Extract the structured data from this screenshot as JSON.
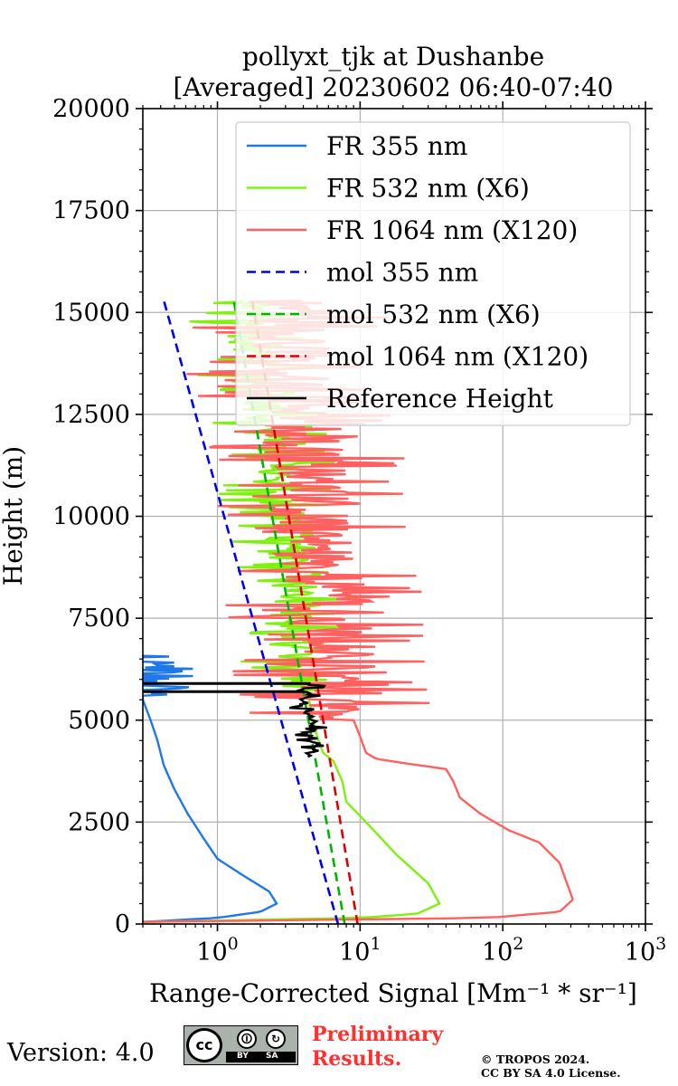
{
  "chart_data": {
    "type": "line",
    "title_line1": "pollyxt_tjk at Dushanbe",
    "title_line2": "[Averaged] 20230602 06:40-07:40",
    "xlabel": "Range-Corrected Signal [Mm⁻¹ * sr⁻¹]",
    "ylabel": "Height (m)",
    "xscale": "log",
    "xlim": [
      0.3,
      1000
    ],
    "ylim": [
      0,
      20000
    ],
    "grid": true,
    "legend_position": "upper right",
    "y_ticks": [
      0,
      2500,
      5000,
      7500,
      10000,
      12500,
      15000,
      17500,
      20000
    ],
    "y_tick_labels": [
      "0",
      "2500",
      "5000",
      "7500",
      "10000",
      "12500",
      "15000",
      "17500",
      "20000"
    ],
    "x_ticks": [
      1,
      10,
      100,
      1000
    ],
    "x_tick_labels": [
      {
        "base": "10",
        "exp": "0"
      },
      {
        "base": "10",
        "exp": "1"
      },
      {
        "base": "10",
        "exp": "2"
      },
      {
        "base": "10",
        "exp": "3"
      }
    ],
    "series": [
      {
        "name": "FR 355 nm",
        "color": "#1f78e8",
        "style": "solid",
        "noise": 0.55,
        "noise_start": 5600,
        "points": [
          [
            0.3,
            50
          ],
          [
            1.0,
            150
          ],
          [
            2.0,
            300
          ],
          [
            2.6,
            500
          ],
          [
            2.3,
            800
          ],
          [
            1.5,
            1200
          ],
          [
            1.0,
            1600
          ],
          [
            0.8,
            2100
          ],
          [
            0.62,
            2700
          ],
          [
            0.5,
            3300
          ],
          [
            0.42,
            3900
          ],
          [
            0.38,
            4500
          ],
          [
            0.34,
            5000
          ],
          [
            0.3,
            5500
          ],
          [
            0.3,
            6100
          ],
          [
            0.3,
            6600
          ]
        ]
      },
      {
        "name": "FR 532 nm (X6)",
        "color": "#80f010",
        "style": "solid",
        "noise": 0.45,
        "noise_start": 5700,
        "points": [
          [
            0.3,
            50
          ],
          [
            10,
            150
          ],
          [
            25,
            250
          ],
          [
            36,
            500
          ],
          [
            30,
            1000
          ],
          [
            18,
            1700
          ],
          [
            11,
            2500
          ],
          [
            8,
            3000
          ],
          [
            7.5,
            3500
          ],
          [
            6.5,
            4000
          ],
          [
            5.5,
            4200
          ],
          [
            5.0,
            4600
          ],
          [
            4.6,
            5100
          ],
          [
            4.3,
            5700
          ],
          [
            4.0,
            6500
          ],
          [
            3.8,
            7500
          ],
          [
            3.5,
            8500
          ],
          [
            3.2,
            9500
          ],
          [
            2.8,
            10500
          ],
          [
            2.5,
            11500
          ],
          [
            2.2,
            12500
          ],
          [
            2.0,
            13500
          ],
          [
            1.6,
            14500
          ],
          [
            1.4,
            15300
          ]
        ]
      },
      {
        "name": "FR 1064 nm (X120)",
        "color": "#ff6060",
        "style": "solid",
        "noise": 0.75,
        "noise_start": 5000,
        "points": [
          [
            0.3,
            50
          ],
          [
            80,
            150
          ],
          [
            250,
            300
          ],
          [
            310,
            600
          ],
          [
            250,
            1500
          ],
          [
            180,
            2000
          ],
          [
            110,
            2300
          ],
          [
            70,
            2700
          ],
          [
            50,
            3100
          ],
          [
            45,
            3500
          ],
          [
            40,
            3800
          ],
          [
            20,
            3950
          ],
          [
            13,
            4050
          ],
          [
            11,
            4200
          ],
          [
            10,
            4600
          ],
          [
            9,
            5000
          ],
          [
            8,
            5500
          ],
          [
            7,
            6000
          ],
          [
            6.5,
            7000
          ],
          [
            6,
            8000
          ],
          [
            5,
            9000
          ],
          [
            4.6,
            10000
          ],
          [
            4.2,
            11000
          ],
          [
            4.0,
            12000
          ],
          [
            3.5,
            13000
          ],
          [
            3.0,
            14000
          ],
          [
            2.7,
            15300
          ]
        ]
      },
      {
        "name": "mol 355 nm",
        "color": "#0000ee",
        "style": "dashed",
        "points": [
          [
            7.0,
            0
          ],
          [
            0.42,
            15300
          ]
        ]
      },
      {
        "name": "mol 532 nm (X6)",
        "color": "#00b400",
        "style": "dashed",
        "points": [
          [
            7.8,
            0
          ],
          [
            1.3,
            15300
          ]
        ]
      },
      {
        "name": "mol 1064 nm (X120)",
        "color": "#dd0000",
        "style": "dashed",
        "points": [
          [
            9.6,
            0
          ],
          [
            1.75,
            15300
          ]
        ]
      },
      {
        "name": "Reference Height",
        "color": "#000000",
        "style": "solid",
        "noise": 0.12,
        "noise_start": 4100,
        "points": [
          [
            4.3,
            4100
          ],
          [
            4.6,
            4600
          ],
          [
            4.4,
            5000
          ],
          [
            4.2,
            5300
          ],
          [
            4.0,
            5550
          ],
          [
            4.1,
            5700
          ],
          [
            4.5,
            5900
          ]
        ],
        "ref_lines": [
          5700,
          5900
        ]
      }
    ]
  },
  "footer": {
    "version": "Version: 4.0",
    "license_badge": {
      "icon_name": "cc-by-sa-icon",
      "cc": "cc",
      "by": "BY",
      "sa": "SA"
    },
    "preliminary_line1": "Preliminary",
    "preliminary_line2": "Results.",
    "copyright_line1": "© TROPOS 2024.",
    "copyright_line2": "CC BY SA 4.0 License."
  }
}
